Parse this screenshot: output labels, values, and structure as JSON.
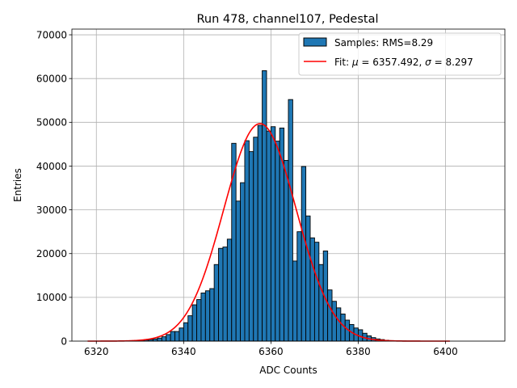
{
  "chart_data": {
    "type": "histogram",
    "title": "Run 478, channel107, Pedestal",
    "xlabel": "ADC Counts",
    "ylabel": "Entries",
    "xlim": [
      6314.4,
      6413.6
    ],
    "ylim": [
      0,
      71300
    ],
    "xticks": [
      "6320",
      "6340",
      "6360",
      "6380",
      "6400"
    ],
    "yticks": [
      "0",
      "10000",
      "20000",
      "30000",
      "40000",
      "50000",
      "60000",
      "70000"
    ],
    "grid": true,
    "legend_position": "top-right",
    "legend": {
      "bars_label": "Samples: RMS=8.29",
      "fit_label_prefix": "Fit: ",
      "fit_mu_symbol": "μ",
      "fit_mu_value": " = 6357.492, ",
      "fit_sigma_symbol": "σ",
      "fit_sigma_value": " = 8.297"
    },
    "colors": {
      "bars": "#1f77b4",
      "bar_edge": "#000000",
      "fit": "#ff0000"
    },
    "bins": {
      "start": 6326,
      "width": 1,
      "counts": [
        30,
        50,
        80,
        120,
        180,
        250,
        350,
        500,
        700,
        1000,
        1500,
        2200,
        2200,
        3000,
        4200,
        5800,
        8300,
        9500,
        11000,
        11500,
        12000,
        17500,
        21200,
        21500,
        23300,
        45200,
        32000,
        36200,
        45800,
        43300,
        46600,
        49300,
        61800,
        48000,
        49000,
        45700,
        48700,
        41300,
        55200,
        18300,
        25000,
        39900,
        28600,
        23600,
        22600,
        17500,
        20600,
        11700,
        9100,
        7600,
        6200,
        4800,
        3800,
        3000,
        2600,
        1800,
        1200,
        800,
        500,
        350,
        200,
        120,
        80,
        50,
        30
      ]
    },
    "fit": {
      "mu": 6357.492,
      "sigma": 8.297,
      "amplitude": 49700,
      "x_range": [
        6318,
        6401
      ]
    }
  }
}
